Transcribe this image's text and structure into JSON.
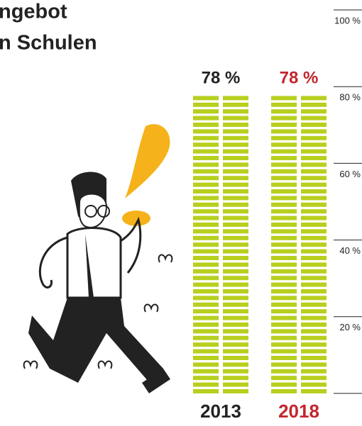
{
  "chart_data": {
    "type": "bar",
    "title_lines": [
      "ngebot",
      "n Schulen"
    ],
    "categories": [
      "2013",
      "2018"
    ],
    "values": [
      78,
      78
    ],
    "value_labels": [
      "78 %",
      "78 %"
    ],
    "color": "#b8cf1e",
    "label_colors": [
      "#222222",
      "#c1272d"
    ],
    "ylim": [
      0,
      100
    ],
    "yticks": [
      {
        "value": 20,
        "label": "20 %"
      },
      {
        "value": 40,
        "label": "40 %"
      },
      {
        "value": 60,
        "label": "60 %"
      },
      {
        "value": 80,
        "label": "80 %"
      },
      {
        "value": 100,
        "label": "100 %"
      }
    ]
  }
}
